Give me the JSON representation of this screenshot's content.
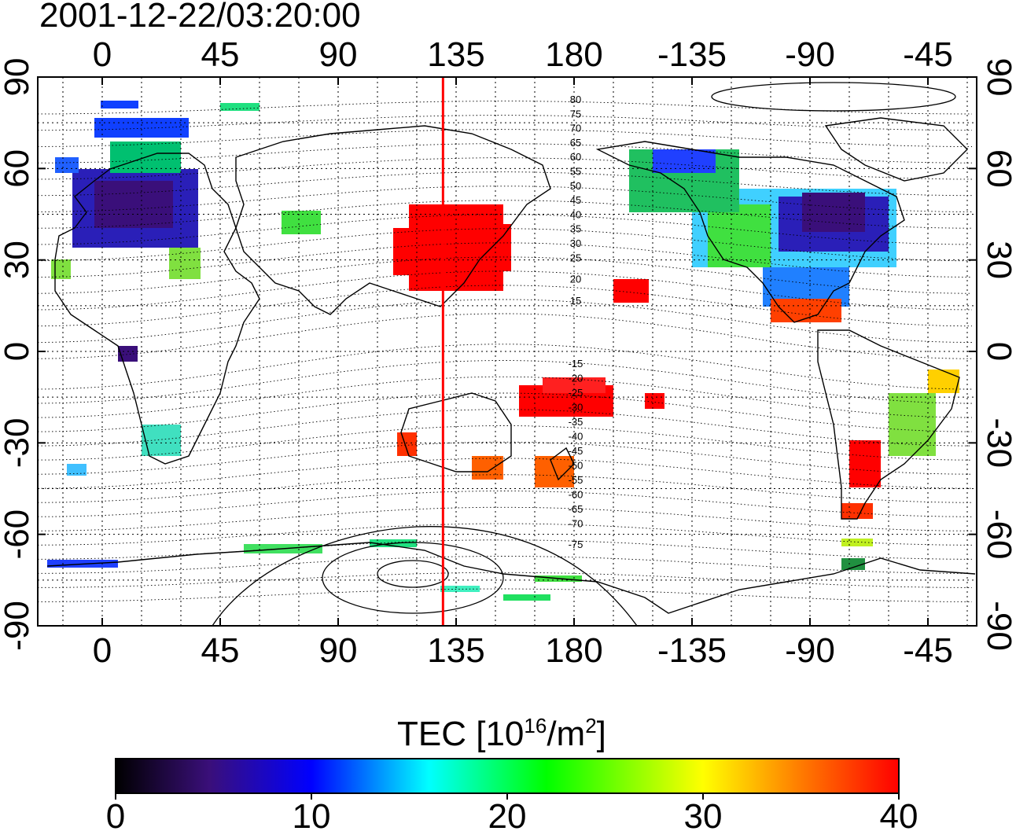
{
  "timestamp": "2001-12-22/03:20:00",
  "lon_ticks": [
    "0",
    "45",
    "90",
    "135",
    "180",
    "-135",
    "-90",
    "-45"
  ],
  "lat_ticks": [
    "90",
    "60",
    "30",
    "0",
    "-30",
    "-60",
    "-90"
  ],
  "colorbar": {
    "label_main": "TEC  [10",
    "label_sup1": "16",
    "label_mid": "/m",
    "label_sup2": "2",
    "label_end": "]",
    "tick_labels": [
      "0",
      "10",
      "20",
      "30",
      "40"
    ],
    "range": [
      0,
      40
    ],
    "colors": [
      "#000000",
      "#3a0f7a",
      "#0000ff",
      "#00ffff",
      "#00ff00",
      "#ffff00",
      "#ff8000",
      "#ff0000"
    ]
  },
  "contour_labels": {
    "north": [
      "80",
      "75",
      "70",
      "65",
      "60",
      "55",
      "50",
      "45",
      "40",
      "35",
      "30",
      "25",
      "20",
      "15"
    ],
    "south": [
      "-15",
      "-20",
      "-25",
      "-30",
      "-35",
      "-40",
      "-45",
      "-50",
      "-55",
      "-60",
      "-65",
      "-70",
      "-75"
    ]
  },
  "terminator_longitude": 130,
  "terminator_color": "#ff0000"
}
